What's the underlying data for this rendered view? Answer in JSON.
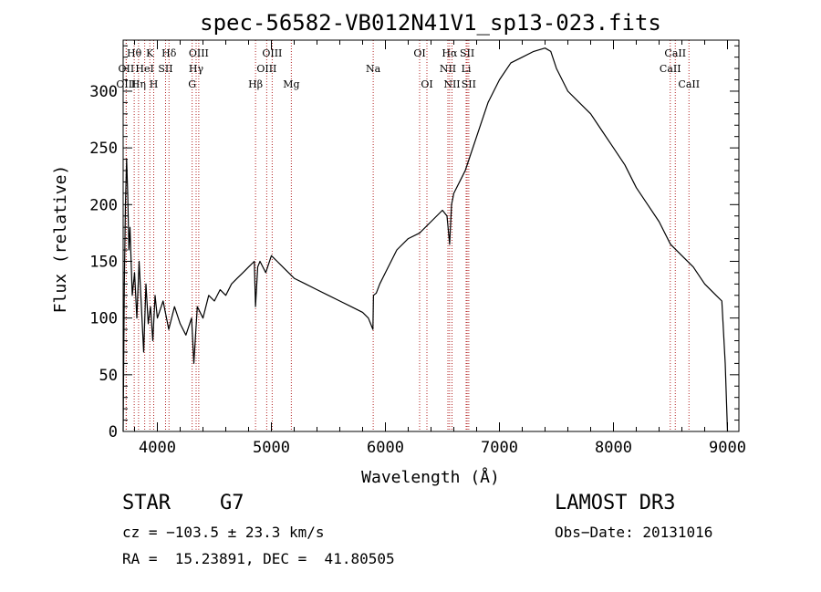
{
  "chart_data": {
    "type": "line",
    "title": "spec-56582-VB012N41V1_sp13-023.fits",
    "xlabel": "Wavelength (Å)",
    "ylabel": "Flux (relative)",
    "xlim": [
      3700,
      9100
    ],
    "ylim": [
      0,
      345
    ],
    "x_ticks": [
      4000,
      5000,
      6000,
      7000,
      8000,
      9000
    ],
    "y_ticks": [
      0,
      50,
      100,
      150,
      200,
      250,
      300
    ],
    "series": [
      {
        "name": "spectrum",
        "x": [
          3700,
          3710,
          3720,
          3730,
          3740,
          3750,
          3760,
          3780,
          3800,
          3820,
          3840,
          3860,
          3880,
          3900,
          3920,
          3940,
          3960,
          3980,
          4000,
          4050,
          4100,
          4150,
          4200,
          4250,
          4300,
          4320,
          4350,
          4400,
          4450,
          4500,
          4550,
          4600,
          4650,
          4700,
          4750,
          4800,
          4850,
          4861,
          4880,
          4900,
          4950,
          5000,
          5050,
          5100,
          5150,
          5200,
          5300,
          5400,
          5500,
          5600,
          5700,
          5800,
          5850,
          5890,
          5895,
          5920,
          5950,
          6000,
          6100,
          6200,
          6300,
          6400,
          6500,
          6540,
          6563,
          6580,
          6600,
          6700,
          6800,
          6900,
          7000,
          7100,
          7200,
          7300,
          7400,
          7450,
          7500,
          7600,
          7700,
          7800,
          7900,
          8000,
          8100,
          8200,
          8300,
          8400,
          8500,
          8600,
          8700,
          8800,
          8900,
          8950,
          8980,
          9000
        ],
        "y": [
          0,
          130,
          200,
          240,
          210,
          160,
          180,
          120,
          140,
          100,
          150,
          110,
          70,
          130,
          95,
          110,
          80,
          120,
          100,
          115,
          90,
          110,
          95,
          85,
          100,
          60,
          110,
          100,
          120,
          115,
          125,
          120,
          130,
          135,
          140,
          145,
          150,
          110,
          145,
          150,
          140,
          155,
          150,
          145,
          140,
          135,
          130,
          125,
          120,
          115,
          110,
          105,
          100,
          90,
          120,
          122,
          130,
          140,
          160,
          170,
          175,
          185,
          195,
          190,
          165,
          200,
          210,
          230,
          260,
          290,
          310,
          325,
          330,
          335,
          338,
          335,
          320,
          300,
          290,
          280,
          265,
          250,
          235,
          215,
          200,
          185,
          165,
          155,
          145,
          130,
          120,
          115,
          60,
          0
        ]
      }
    ],
    "lines": [
      {
        "label": "Hθ",
        "x": 3797,
        "row": 1
      },
      {
        "label": "K",
        "x": 3934,
        "row": 1
      },
      {
        "label": "Hδ",
        "x": 4102,
        "row": 1
      },
      {
        "label": "OIII",
        "x": 4363,
        "row": 1
      },
      {
        "label": "OIII",
        "x": 5007,
        "row": 1
      },
      {
        "label": "OI",
        "x": 6300,
        "row": 1
      },
      {
        "label": "Hα",
        "x": 6563,
        "row": 1
      },
      {
        "label": "SII",
        "x": 6717,
        "row": 1
      },
      {
        "label": "CaII",
        "x": 8542,
        "row": 1
      },
      {
        "label": "OII",
        "x": 3727,
        "row": 2
      },
      {
        "label": "HeI",
        "x": 3889,
        "row": 2
      },
      {
        "label": "SII",
        "x": 4072,
        "row": 2
      },
      {
        "label": "Hγ",
        "x": 4340,
        "row": 2
      },
      {
        "label": "OIII",
        "x": 4959,
        "row": 2
      },
      {
        "label": "Na",
        "x": 5893,
        "row": 2
      },
      {
        "label": "NII",
        "x": 6548,
        "row": 2
      },
      {
        "label": "Li",
        "x": 6708,
        "row": 2
      },
      {
        "label": "CaII",
        "x": 8498,
        "row": 2
      },
      {
        "label": "OIII",
        "x": 3727,
        "row": 3
      },
      {
        "label": "Hη",
        "x": 3835,
        "row": 3
      },
      {
        "label": "H",
        "x": 3968,
        "row": 3
      },
      {
        "label": "G",
        "x": 4305,
        "row": 3
      },
      {
        "label": "Hβ",
        "x": 4861,
        "row": 3
      },
      {
        "label": "Mg",
        "x": 5175,
        "row": 3
      },
      {
        "label": "OI",
        "x": 6364,
        "row": 3
      },
      {
        "label": "NII",
        "x": 6584,
        "row": 3
      },
      {
        "label": "SII",
        "x": 6731,
        "row": 3
      },
      {
        "label": "CaII",
        "x": 8662,
        "row": 3
      }
    ]
  },
  "info": {
    "object_class": "STAR",
    "subclass": "G7",
    "survey": "LAMOST DR3",
    "cz": "cz = −103.5 ± 23.3 km/s",
    "obs_date": "Obs−Date: 20131016",
    "coords": "RA =  15.23891, DEC =  41.80505"
  },
  "colors": {
    "spectrum": "#000000",
    "line_markers": "#b22222",
    "axes": "#000000",
    "background": "#ffffff"
  }
}
